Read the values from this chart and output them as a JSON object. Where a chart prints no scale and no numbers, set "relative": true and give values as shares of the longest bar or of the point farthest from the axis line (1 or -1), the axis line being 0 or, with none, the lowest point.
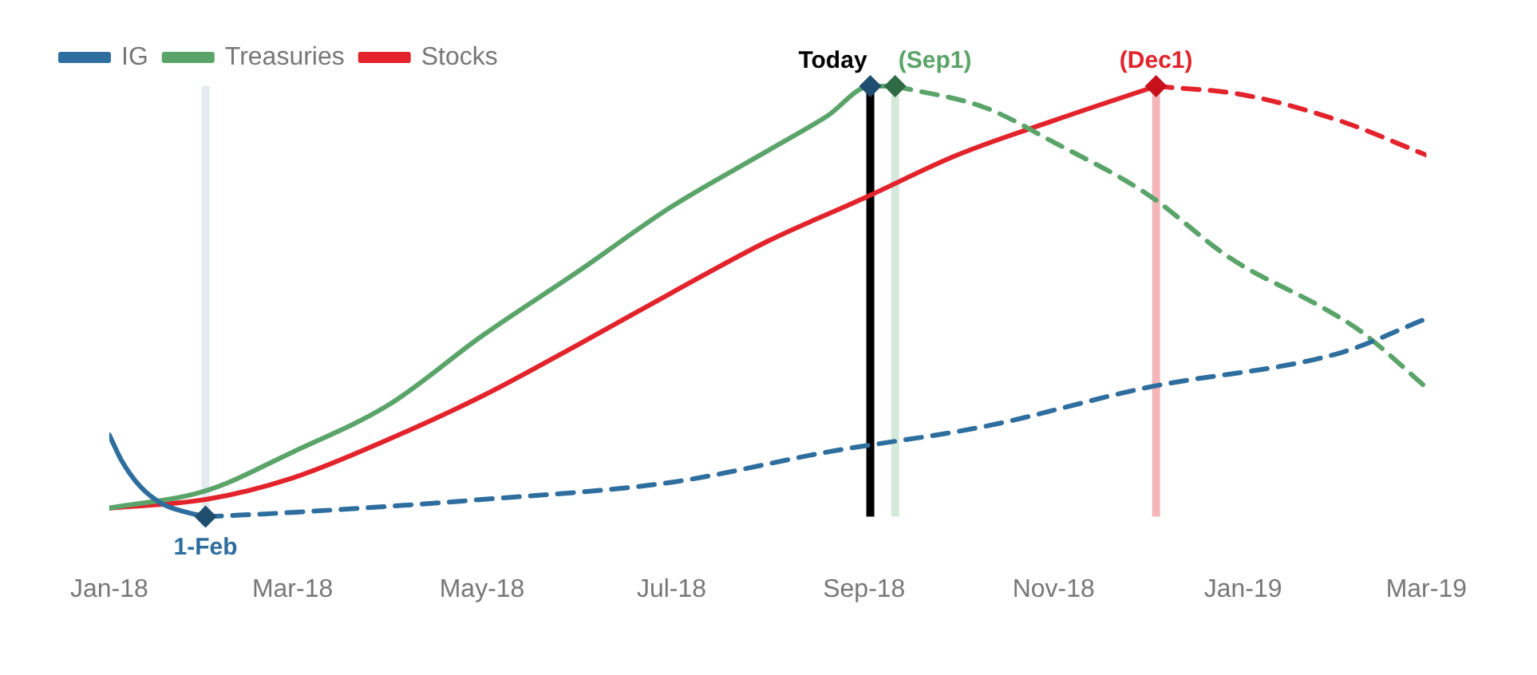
{
  "chart_data": {
    "type": "line",
    "relative": true,
    "legend": "top left",
    "grid": false,
    "tick_labels": "x",
    "xlim": [
      "2018-01-01",
      "2019-03-01"
    ],
    "xticks": [
      {
        "value": "2018-01-01",
        "label": "Jan-18"
      },
      {
        "value": "2018-03-01",
        "label": "Mar-18"
      },
      {
        "value": "2018-05-01",
        "label": "May-18"
      },
      {
        "value": "2018-07-01",
        "label": "Jul-18"
      },
      {
        "value": "2018-09-01",
        "label": "Sep-18"
      },
      {
        "value": "2018-11-01",
        "label": "Nov-18"
      },
      {
        "value": "2019-01-01",
        "label": "Jan-19"
      },
      {
        "value": "2019-03-01",
        "label": "Mar-19"
      }
    ],
    "series": [
      {
        "name": "IG",
        "color": "#2e6e9e",
        "line_style": "solid",
        "x": [
          "2018-01-01",
          "2018-01-05",
          "2018-01-11",
          "2018-01-18",
          "2018-01-26",
          "2018-02-01"
        ],
        "values": [
          0.19,
          0.13,
          0.07,
          0.03,
          0.01,
          0
        ]
      },
      {
        "color": "#2e6e9e",
        "line_style": "dashed",
        "x": [
          "2018-02-01",
          "2018-03-01",
          "2018-05-01",
          "2018-07-01",
          "2018-08-20",
          "2018-10-10",
          "2018-12-01",
          "2019-02-01",
          "2019-03-01"
        ],
        "values": [
          0,
          0.01,
          0.04,
          0.08,
          0.15,
          0.21,
          0.3,
          0.38,
          0.46
        ]
      },
      {
        "name": "Treasuries",
        "color": "#5aa46a",
        "line_style": "solid",
        "x": [
          "2018-01-01",
          "2018-02-01",
          "2018-03-01",
          "2018-04-01",
          "2018-05-01",
          "2018-06-01",
          "2018-07-01",
          "2018-08-01",
          "2018-08-20",
          "2018-09-03",
          "2018-09-11"
        ],
        "values": [
          0.02,
          0.06,
          0.15,
          0.26,
          0.42,
          0.57,
          0.72,
          0.85,
          0.93,
          1,
          1
        ]
      },
      {
        "color": "#5aa46a",
        "line_style": "dashed",
        "x": [
          "2018-09-11",
          "2018-10-10",
          "2018-11-01",
          "2018-12-01",
          "2018-12-28",
          "2019-01-28",
          "2019-02-08",
          "2019-03-01"
        ],
        "values": [
          1,
          0.95,
          0.87,
          0.75,
          0.6,
          0.48,
          0.43,
          0.3
        ]
      },
      {
        "name": "Stocks",
        "color": "#e3232b",
        "line_style": "solid",
        "x": [
          "2018-01-01",
          "2018-02-01",
          "2018-03-01",
          "2018-04-01",
          "2018-05-01",
          "2018-06-01",
          "2018-07-01",
          "2018-08-01",
          "2018-09-01",
          "2018-10-01",
          "2018-11-01",
          "2018-12-04"
        ],
        "values": [
          0.02,
          0.04,
          0.09,
          0.18,
          0.28,
          0.4,
          0.52,
          0.64,
          0.74,
          0.84,
          0.92,
          1
        ]
      },
      {
        "color": "#e3232b",
        "line_style": "dashed",
        "x": [
          "2018-12-04",
          "2019-01-01",
          "2019-02-01",
          "2019-03-01"
        ],
        "values": [
          1,
          0.98,
          0.92,
          0.84
        ]
      },
      {
        "type": "scatter",
        "color": "#1f4e6e",
        "marker": "diamond",
        "x": [
          "2018-02-01"
        ],
        "values": [
          0
        ]
      },
      {
        "type": "scatter",
        "color": "#1f4e6e",
        "marker": "diamond",
        "x": [
          "2018-09-03"
        ],
        "values": [
          1
        ]
      },
      {
        "type": "scatter",
        "color": "#2f6b45",
        "marker": "diamond",
        "x": [
          "2018-09-11"
        ],
        "values": [
          1
        ]
      },
      {
        "type": "scatter",
        "color": "#c8101a",
        "marker": "diamond",
        "x": [
          "2018-12-04"
        ],
        "values": [
          1
        ]
      }
    ],
    "ref_lines": [
      {
        "axis": "x",
        "value": "2018-02-01",
        "label": null,
        "color": "#e3ebee"
      },
      {
        "axis": "x",
        "value": "2018-09-03",
        "label": "Today",
        "color": "#000000"
      },
      {
        "axis": "x",
        "value": "2018-09-11",
        "label": "(Sep1)",
        "color": "#d5e8dc"
      },
      {
        "axis": "x",
        "value": "2018-12-04",
        "label": "(Dec1)",
        "color": "#f4b6b8"
      }
    ],
    "annotations": [
      {
        "text": "1-Feb",
        "x": "2018-02-01",
        "y": 0
      }
    ]
  }
}
